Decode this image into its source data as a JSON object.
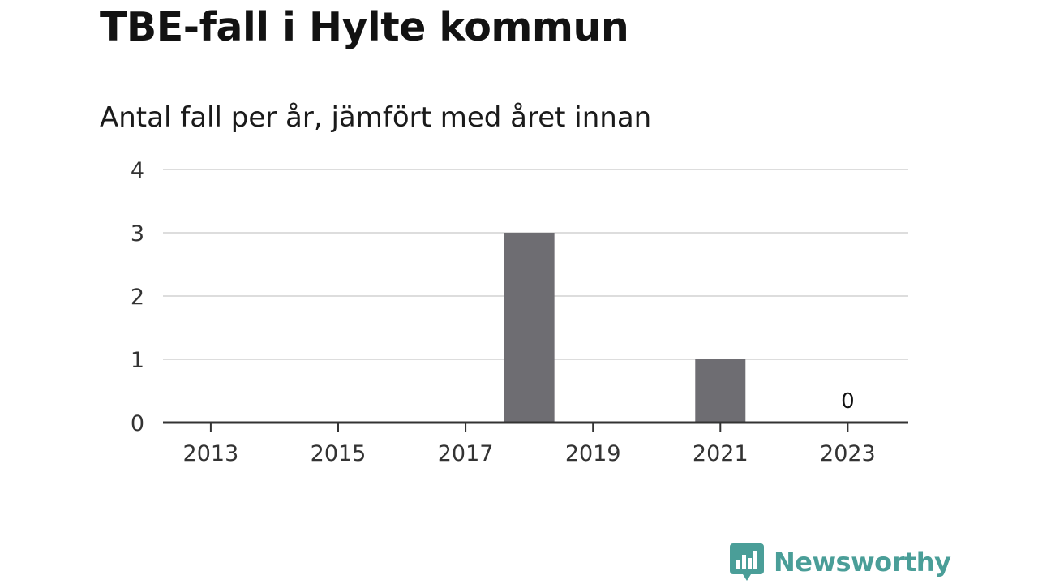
{
  "title": "TBE-fall i Hylte kommun",
  "subtitle": "Antal fall per år, jämfört med året innan",
  "brand": {
    "name": "Newsworthy",
    "icon": "newsworthy-logo-icon",
    "color": "#4a9e98"
  },
  "chart_data": {
    "type": "bar",
    "title": "TBE-fall i Hylte kommun",
    "subtitle": "Antal fall per år, jämfört med året innan",
    "xlabel": "",
    "ylabel": "",
    "x": [
      2013,
      2014,
      2015,
      2016,
      2017,
      2018,
      2019,
      2020,
      2021,
      2022,
      2023
    ],
    "values": [
      0,
      0,
      0,
      0,
      0,
      3,
      0,
      0,
      1,
      0,
      0
    ],
    "x_ticks": [
      "2013",
      "2015",
      "2017",
      "2019",
      "2021",
      "2023"
    ],
    "y_ticks": [
      "0",
      "1",
      "2",
      "3",
      "4"
    ],
    "ylim": [
      0,
      4
    ],
    "xlim": [
      2012.25,
      2023.95
    ],
    "data_labels": [
      {
        "x": 2023,
        "label": "0"
      }
    ],
    "grid": true,
    "legend": "none",
    "bar_color": "#6e6d72",
    "grid_color": "#dddddd",
    "axis_color": "#333333"
  }
}
